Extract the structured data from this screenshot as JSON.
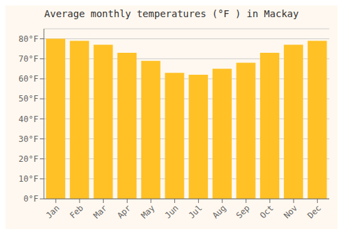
{
  "chart_data": {
    "type": "bar",
    "title": "Average monthly temperatures (°F ) in Mackay",
    "categories": [
      "Jan",
      "Feb",
      "Mar",
      "Apr",
      "May",
      "Jun",
      "Jul",
      "Aug",
      "Sep",
      "Oct",
      "Nov",
      "Dec"
    ],
    "values": [
      80,
      79,
      77,
      73,
      69,
      63,
      62,
      65,
      68,
      73,
      77,
      79
    ],
    "color": "#FFC125",
    "ylim": [
      0,
      85
    ],
    "yticks": [
      {
        "value": 0,
        "label": "0°F"
      },
      {
        "value": 10,
        "label": "10°F"
      },
      {
        "value": 20,
        "label": "20°F"
      },
      {
        "value": 30,
        "label": "30°F"
      },
      {
        "value": 40,
        "label": "40°F"
      },
      {
        "value": 50,
        "label": "50°F"
      },
      {
        "value": 60,
        "label": "60°F"
      },
      {
        "value": 70,
        "label": "70°F"
      },
      {
        "value": 80,
        "label": "80°F"
      }
    ],
    "grid": true
  }
}
